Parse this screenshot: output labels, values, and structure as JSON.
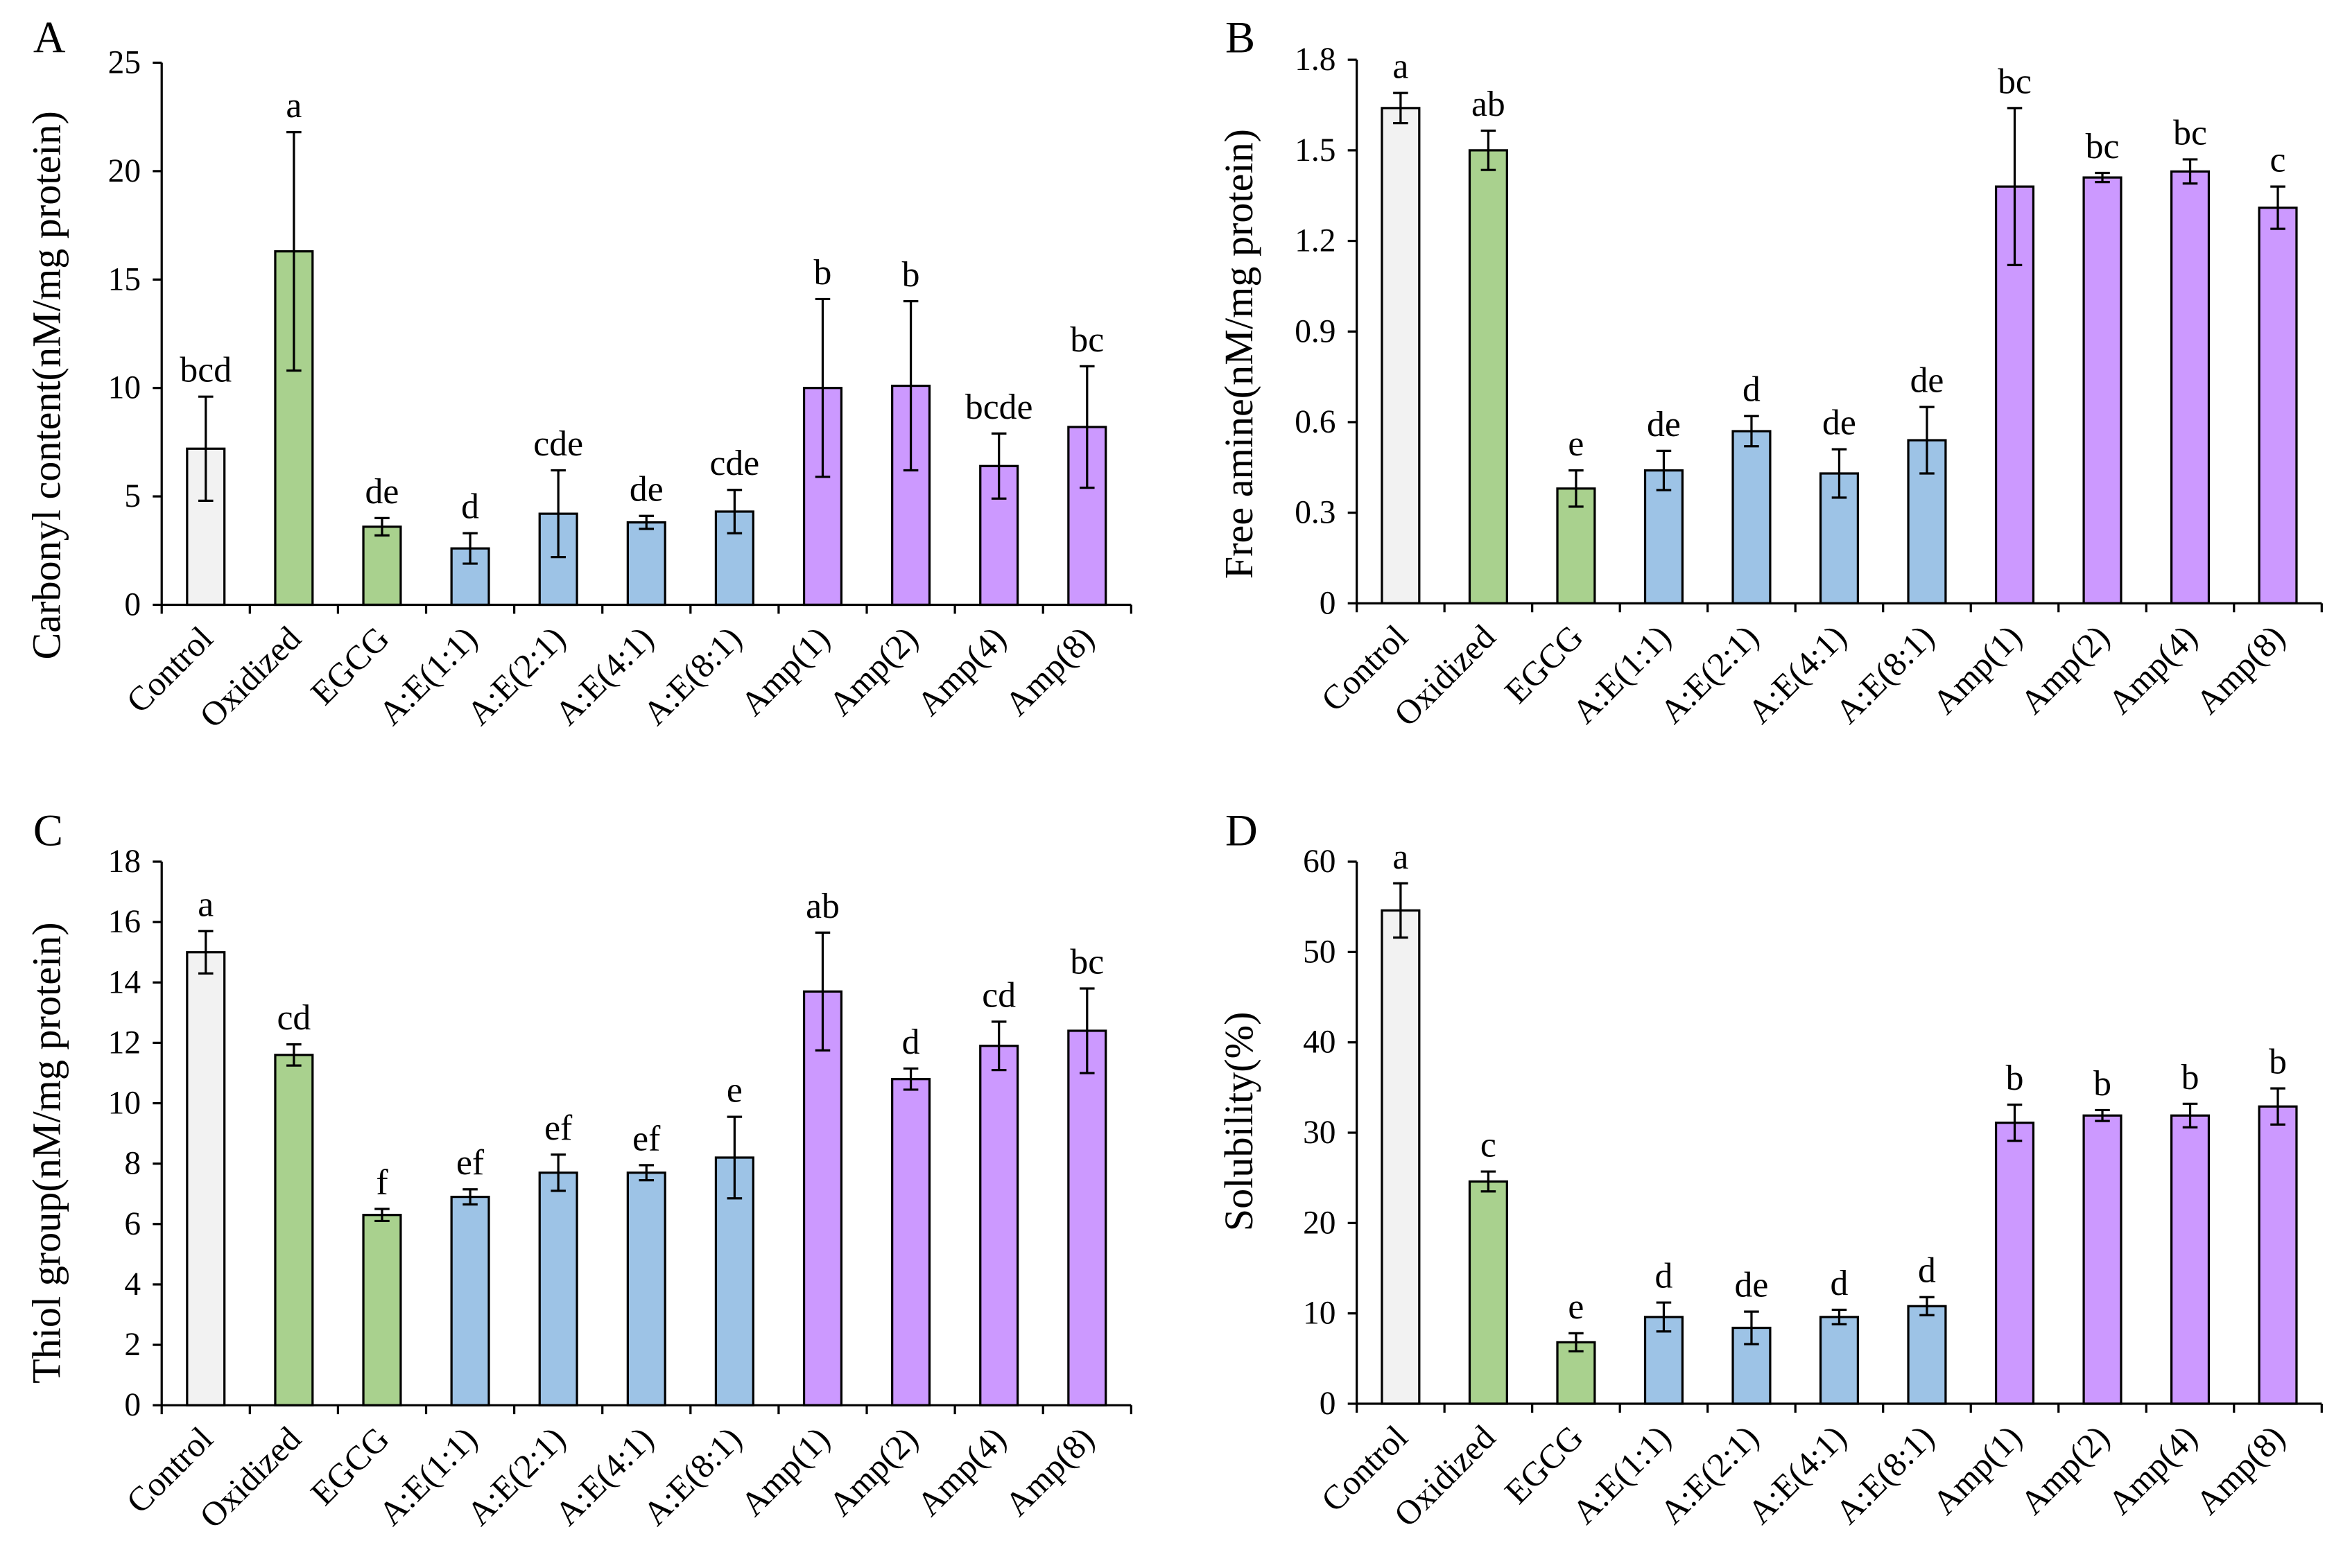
{
  "bar_colors": [
    "#F2F2F2",
    "#A9D18E",
    "#A9D18E",
    "#9DC3E6",
    "#9DC3E6",
    "#9DC3E6",
    "#9DC3E6",
    "#CC99FF",
    "#CC99FF",
    "#CC99FF",
    "#CC99FF"
  ],
  "chart_data": [
    {
      "panel": "A",
      "type": "bar",
      "ylabel": "Carbonyl content(nM/mg protein)",
      "ylim": [
        0,
        25
      ],
      "yticks": [
        0,
        5,
        10,
        15,
        20,
        25
      ],
      "categories": [
        "Control",
        "Oxidized",
        "EGCG",
        "A:E(1:1)",
        "A:E(2:1)",
        "A:E(4:1)",
        "A:E(8:1)",
        "Amp(1)",
        "Amp(2)",
        "Amp(4)",
        "Amp(8)"
      ],
      "values": [
        7.2,
        16.3,
        3.6,
        2.6,
        4.2,
        3.8,
        4.3,
        10.0,
        10.1,
        6.4,
        8.2
      ],
      "errors": [
        2.4,
        5.5,
        0.4,
        0.7,
        2.0,
        0.3,
        1.0,
        4.1,
        3.9,
        1.5,
        2.8
      ],
      "letters": [
        "bcd",
        "a",
        "de",
        "d",
        "cde",
        "de",
        "cde",
        "b",
        "b",
        "bcde",
        "bc"
      ]
    },
    {
      "panel": "B",
      "type": "bar",
      "ylabel": "Free amine(nM/mg protein)",
      "ylim": [
        0,
        1.8
      ],
      "yticks": [
        0,
        0.3,
        0.6,
        0.9,
        1.2,
        1.5,
        1.8
      ],
      "categories": [
        "Control",
        "Oxidized",
        "EGCG",
        "A:E(1:1)",
        "A:E(2:1)",
        "A:E(4:1)",
        "A:E(8:1)",
        "Amp(1)",
        "Amp(2)",
        "Amp(4)",
        "Amp(8)"
      ],
      "values": [
        1.64,
        1.5,
        0.38,
        0.44,
        0.57,
        0.43,
        0.54,
        1.38,
        1.41,
        1.43,
        1.31
      ],
      "errors": [
        0.05,
        0.065,
        0.06,
        0.065,
        0.05,
        0.08,
        0.11,
        0.26,
        0.015,
        0.04,
        0.07
      ],
      "letters": [
        "a",
        "ab",
        "e",
        "de",
        "d",
        "de",
        "de",
        "bc",
        "bc",
        "bc",
        "c"
      ]
    },
    {
      "panel": "C",
      "type": "bar",
      "ylabel": "Thiol group(nM/mg protein)",
      "ylim": [
        0,
        18
      ],
      "yticks": [
        0,
        2,
        4,
        6,
        8,
        10,
        12,
        14,
        16,
        18
      ],
      "categories": [
        "Control",
        "Oxidized",
        "EGCG",
        "A:E(1:1)",
        "A:E(2:1)",
        "A:E(4:1)",
        "A:E(8:1)",
        "Amp(1)",
        "Amp(2)",
        "Amp(4)",
        "Amp(8)"
      ],
      "values": [
        15.0,
        11.6,
        6.3,
        6.9,
        7.7,
        7.7,
        8.2,
        13.7,
        10.8,
        11.9,
        12.4
      ],
      "errors": [
        0.7,
        0.35,
        0.2,
        0.25,
        0.6,
        0.25,
        1.35,
        1.95,
        0.35,
        0.8,
        1.4
      ],
      "letters": [
        "a",
        "cd",
        "f",
        "ef",
        "ef",
        "ef",
        "e",
        "ab",
        "d",
        "cd",
        "bc"
      ]
    },
    {
      "panel": "D",
      "type": "bar",
      "ylabel": "Solubility(%)",
      "ylim": [
        0,
        60
      ],
      "yticks": [
        0,
        10,
        20,
        30,
        40,
        50,
        60
      ],
      "categories": [
        "Control",
        "Oxidized",
        "EGCG",
        "A:E(1:1)",
        "A:E(2:1)",
        "A:E(4:1)",
        "A:E(8:1)",
        "Amp(1)",
        "Amp(2)",
        "Amp(4)",
        "Amp(8)"
      ],
      "values": [
        54.6,
        24.6,
        6.8,
        9.6,
        8.4,
        9.6,
        10.8,
        31.1,
        31.9,
        31.9,
        32.9
      ],
      "errors": [
        3.0,
        1.1,
        1.0,
        1.6,
        1.8,
        0.8,
        1.0,
        2.0,
        0.6,
        1.3,
        2.0
      ],
      "letters": [
        "a",
        "c",
        "e",
        "d",
        "de",
        "d",
        "d",
        "b",
        "b",
        "b",
        "b"
      ]
    }
  ]
}
